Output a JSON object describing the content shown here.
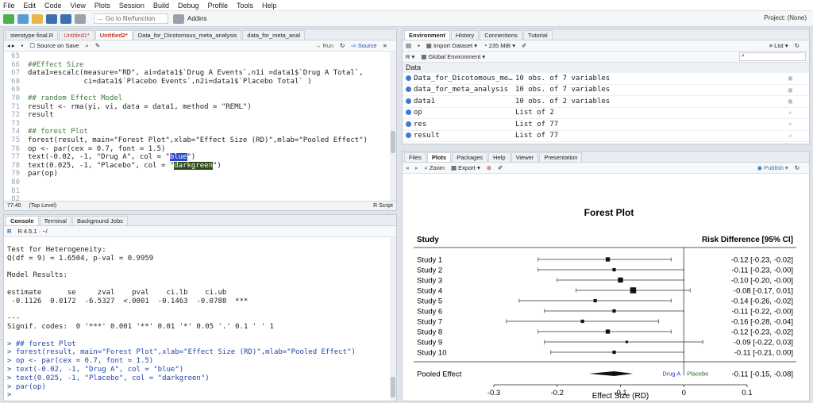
{
  "menu": [
    "File",
    "Edit",
    "Code",
    "View",
    "Plots",
    "Session",
    "Build",
    "Debug",
    "Profile",
    "Tools",
    "Help"
  ],
  "toolbar": {
    "goto_placeholder": "Go to file/function",
    "addins": "Addins",
    "project": "Project: (None)"
  },
  "editor": {
    "tabs": [
      "sterotype final.R",
      "Untitled1*",
      "Untitled2*",
      "Data_for_Dicotomous_meta_analysis",
      "data_for_meta_anal"
    ],
    "source_on_save": "Source on Save",
    "run": "Run",
    "source": "Source",
    "line_numbers": [
      "65",
      "66",
      "67",
      "68",
      "69",
      "70",
      "71",
      "72",
      "73",
      "74",
      "75",
      "76",
      "77",
      "78",
      "79",
      "80",
      "81",
      "82"
    ],
    "lines": [
      "",
      "##Effect Size",
      "data1=escalc(measure=\"RD\", ai=data1$`Drug A Events`,n1i =data1$`Drug A Total`,",
      "             ci=data1$`Placebo Events`,n2i=data1$`Placebo Total` )",
      "",
      "## random Effect Model",
      "result <- rma(yi, vi, data = data1, method = \"REML\")",
      "result",
      "",
      "## forest Plot",
      "forest(result, main=\"Forest Plot\",xlab=\"Effect Size (RD)\",mlab=\"Pooled Effect\")",
      "op <- par(cex = 0.7, font = 1.5)",
      "text(-0.02, -1, \"Drug A\", col = \"blue\")",
      "text(0.025, -1, \"Placebo\", col = \"darkgreen\")",
      "par(op)",
      "",
      "",
      ""
    ],
    "status_pos": "77:40",
    "status_level": "(Top Level)",
    "status_type": "R Script"
  },
  "console": {
    "tabs": [
      "Console",
      "Terminal",
      "Background Jobs"
    ],
    "version": "R 4.5.1 · ~/",
    "lines": [
      "",
      "Test for Heterogeneity:",
      "Q(df = 9) = 1.6504, p-val = 0.9959",
      "",
      "Model Results:",
      "",
      "estimate      se     zval    pval    ci.lb    ci.ub",
      " -0.1126  0.0172  -6.5327  <.0001  -0.1463  -0.0788  ***",
      "",
      "---",
      "Signif. codes:  0 '***' 0.001 '**' 0.01 '*' 0.05 '.' 0.1 ' ' 1",
      "",
      "> ## forest Plot",
      "> forest(result, main=\"Forest Plot\",xlab=\"Effect Size (RD)\",mlab=\"Pooled Effect\")",
      "> op <- par(cex = 0.7, font = 1.5)",
      "> text(-0.02, -1, \"Drug A\", col = \"blue\")",
      "> text(0.025, -1, \"Placebo\", col = \"darkgreen\")",
      "> par(op)",
      ">"
    ]
  },
  "environment": {
    "tabs": [
      "Environment",
      "History",
      "Connections",
      "Tutorial"
    ],
    "import": "Import Dataset",
    "memory": "235 MiB",
    "list": "List",
    "lang": "R",
    "scope": "Global Environment",
    "section": "Data",
    "rows": [
      {
        "name": "Data_for_Dicotomous_me…",
        "value": "10 obs. of 7 variables"
      },
      {
        "name": "data_for_meta_analysis",
        "value": "10 obs. of 7 variables"
      },
      {
        "name": "data1",
        "value": "10 obs. of 2 variables"
      },
      {
        "name": "op",
        "value": "List of  2"
      },
      {
        "name": "res",
        "value": "List of  77"
      },
      {
        "name": "result",
        "value": "List of  77"
      }
    ]
  },
  "plots": {
    "tabs": [
      "Files",
      "Plots",
      "Packages",
      "Help",
      "Viewer",
      "Presentation"
    ],
    "zoom": "Zoom",
    "export": "Export",
    "publish": "Publish"
  },
  "chart_data": {
    "type": "forest",
    "title": "Forest Plot",
    "col_left": "Study",
    "col_right": "Risk Difference [95% CI]",
    "xlabel": "Effect Size (RD)",
    "xlim": [
      -0.3,
      0.1
    ],
    "ticks": [
      -0.3,
      -0.2,
      -0.1,
      0,
      0.1
    ],
    "tick_labels": [
      "-0.3",
      "-0.2",
      "-0.1",
      "0",
      "0.1"
    ],
    "studies": [
      {
        "name": "Study 1",
        "est": -0.12,
        "lo": -0.23,
        "hi": -0.02,
        "label": "-0.12 [-0.23, -0.02]",
        "weight": 3
      },
      {
        "name": "Study 2",
        "est": -0.11,
        "lo": -0.23,
        "hi": 0.0,
        "label": "-0.11 [-0.23, -0.00]",
        "weight": 2
      },
      {
        "name": "Study 3",
        "est": -0.1,
        "lo": -0.2,
        "hi": 0.0,
        "label": "-0.10 [-0.20, -0.00]",
        "weight": 4
      },
      {
        "name": "Study 4",
        "est": -0.08,
        "lo": -0.17,
        "hi": 0.01,
        "label": "-0.08 [-0.17,  0.01]",
        "weight": 5
      },
      {
        "name": "Study 5",
        "est": -0.14,
        "lo": -0.26,
        "hi": -0.02,
        "label": "-0.14 [-0.26, -0.02]",
        "weight": 2
      },
      {
        "name": "Study 6",
        "est": -0.11,
        "lo": -0.22,
        "hi": 0.0,
        "label": "-0.11 [-0.22, -0.00]",
        "weight": 2
      },
      {
        "name": "Study 7",
        "est": -0.16,
        "lo": -0.28,
        "hi": -0.04,
        "label": "-0.16 [-0.28, -0.04]",
        "weight": 2
      },
      {
        "name": "Study 8",
        "est": -0.12,
        "lo": -0.23,
        "hi": -0.02,
        "label": "-0.12 [-0.23, -0.02]",
        "weight": 3
      },
      {
        "name": "Study 9",
        "est": -0.09,
        "lo": -0.22,
        "hi": 0.03,
        "label": "-0.09 [-0.22,  0.03]",
        "weight": 1
      },
      {
        "name": "Study 10",
        "est": -0.11,
        "lo": -0.21,
        "hi": 0.0,
        "label": "-0.11 [-0.21,  0.00]",
        "weight": 2
      }
    ],
    "pooled": {
      "name": "Pooled Effect",
      "est": -0.11,
      "lo": -0.15,
      "hi": -0.08,
      "label": "-0.11 [-0.15, -0.08]"
    },
    "annot_left": "Drug A",
    "annot_right": "Placebo",
    "colors": {
      "annot_left": "#2233cc",
      "annot_right": "#226622"
    }
  }
}
